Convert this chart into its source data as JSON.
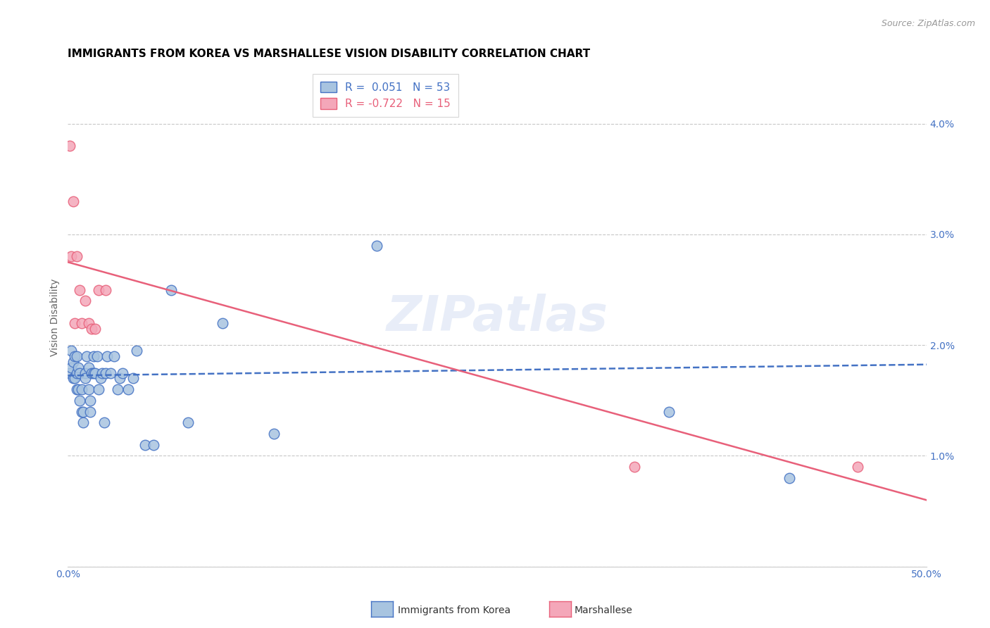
{
  "title": "IMMIGRANTS FROM KOREA VS MARSHALLESE VISION DISABILITY CORRELATION CHART",
  "source": "Source: ZipAtlas.com",
  "ylabel": "Vision Disability",
  "watermark": "ZIPatlas",
  "xlim": [
    0.0,
    0.5
  ],
  "ylim": [
    0.0,
    0.045
  ],
  "xticks": [
    0.0,
    0.1,
    0.2,
    0.3,
    0.4,
    0.5
  ],
  "yticks": [
    0.0,
    0.01,
    0.02,
    0.03,
    0.04
  ],
  "ytick_labels": [
    "",
    "1.0%",
    "2.0%",
    "3.0%",
    "4.0%"
  ],
  "xtick_labels": [
    "0.0%",
    "",
    "",
    "",
    "",
    "50.0%"
  ],
  "korea_R": "0.051",
  "korea_N": "53",
  "marsh_R": "-0.722",
  "marsh_N": "15",
  "korea_color": "#a8c4e0",
  "marsh_color": "#f4a7b9",
  "korea_line_color": "#4472c4",
  "marsh_line_color": "#e8607a",
  "title_fontsize": 11,
  "axis_label_color": "#4472c4",
  "grid_color": "#c8c8c8",
  "korea_scatter_x": [
    0.001,
    0.002,
    0.002,
    0.003,
    0.003,
    0.004,
    0.004,
    0.005,
    0.005,
    0.005,
    0.006,
    0.006,
    0.007,
    0.007,
    0.008,
    0.008,
    0.009,
    0.009,
    0.01,
    0.01,
    0.011,
    0.012,
    0.012,
    0.013,
    0.013,
    0.014,
    0.015,
    0.015,
    0.016,
    0.017,
    0.018,
    0.019,
    0.02,
    0.021,
    0.022,
    0.023,
    0.025,
    0.027,
    0.029,
    0.03,
    0.032,
    0.035,
    0.038,
    0.04,
    0.045,
    0.05,
    0.06,
    0.07,
    0.09,
    0.12,
    0.18,
    0.35,
    0.42
  ],
  "korea_scatter_y": [
    0.0175,
    0.018,
    0.0195,
    0.0185,
    0.017,
    0.017,
    0.019,
    0.0175,
    0.016,
    0.019,
    0.016,
    0.018,
    0.0175,
    0.015,
    0.016,
    0.014,
    0.014,
    0.013,
    0.0175,
    0.017,
    0.019,
    0.018,
    0.016,
    0.015,
    0.014,
    0.0175,
    0.0175,
    0.019,
    0.0175,
    0.019,
    0.016,
    0.017,
    0.0175,
    0.013,
    0.0175,
    0.019,
    0.0175,
    0.019,
    0.016,
    0.017,
    0.0175,
    0.016,
    0.017,
    0.0195,
    0.011,
    0.011,
    0.025,
    0.013,
    0.022,
    0.012,
    0.029,
    0.014,
    0.008
  ],
  "marsh_scatter_x": [
    0.001,
    0.002,
    0.003,
    0.004,
    0.005,
    0.007,
    0.008,
    0.01,
    0.012,
    0.014,
    0.016,
    0.018,
    0.022,
    0.33,
    0.46
  ],
  "marsh_scatter_y": [
    0.038,
    0.028,
    0.033,
    0.022,
    0.028,
    0.025,
    0.022,
    0.024,
    0.022,
    0.0215,
    0.0215,
    0.025,
    0.025,
    0.009,
    0.009
  ],
  "korea_line_x": [
    0.0,
    0.5
  ],
  "korea_line_y": [
    0.01725,
    0.01825
  ],
  "marsh_line_x": [
    0.0,
    0.5
  ],
  "marsh_line_y": [
    0.0275,
    0.006
  ]
}
